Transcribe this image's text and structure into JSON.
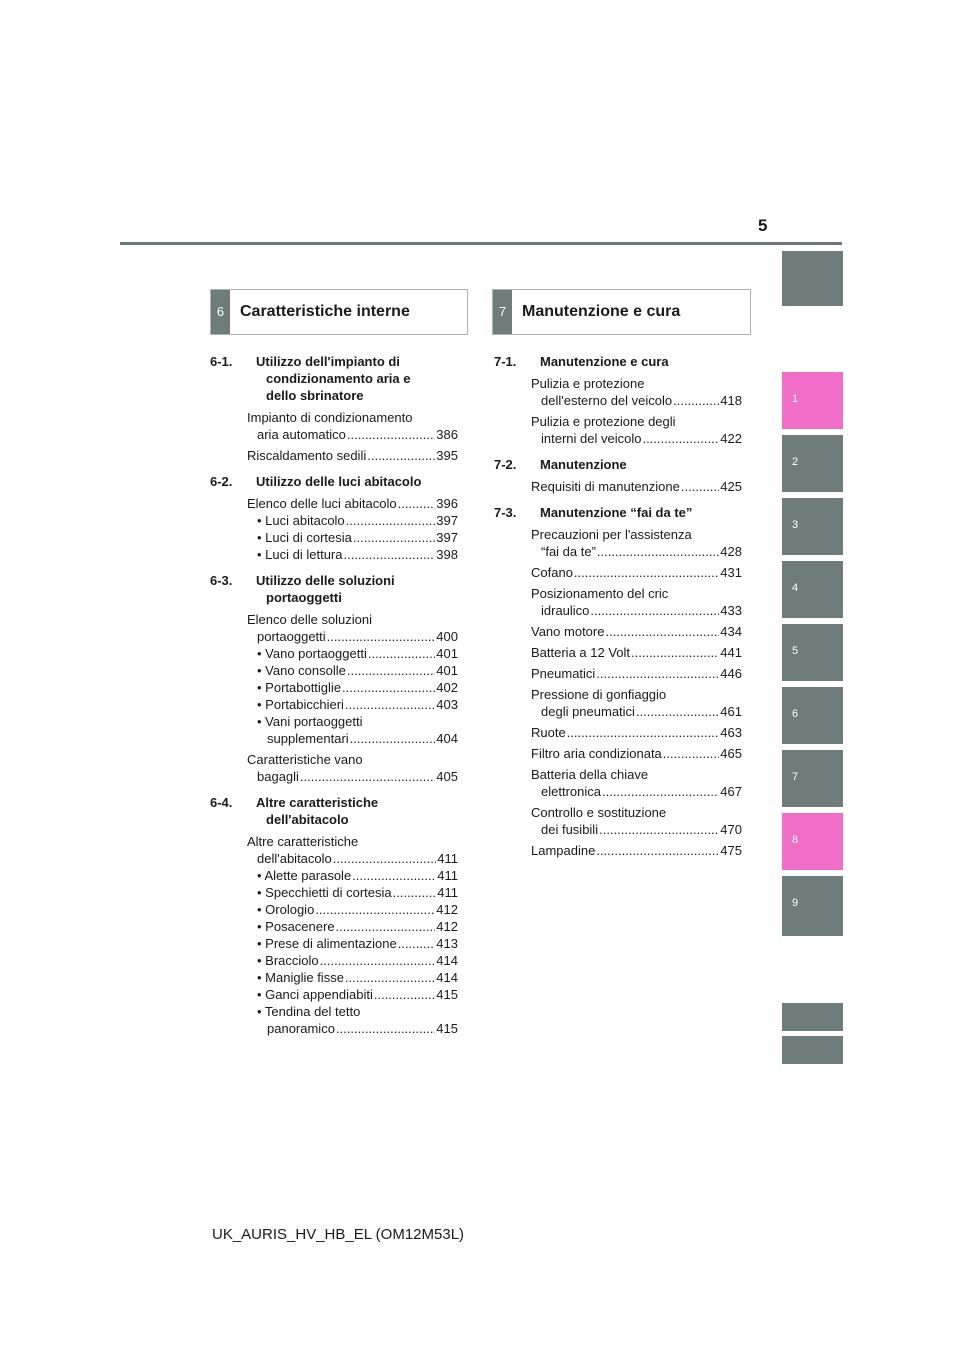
{
  "page_number": "5",
  "side_tabs": [
    {
      "label": ""
    },
    {
      "label": "1"
    },
    {
      "label": "2"
    },
    {
      "label": "3"
    },
    {
      "label": "4"
    },
    {
      "label": "5"
    },
    {
      "label": "6"
    },
    {
      "label": "7"
    },
    {
      "label": "8"
    },
    {
      "label": "9"
    }
  ],
  "colors": {
    "tab_grey": "#6f7c7c",
    "tab_pink": "#f06ec8",
    "rule": "#6b7b7b"
  },
  "left_header": {
    "num": "6",
    "title": "Caratteristiche interne"
  },
  "right_header": {
    "num": "7",
    "title": "Manutenzione e cura"
  },
  "left": {
    "s1": {
      "num": "6-1.",
      "title1": "Utilizzo dell'impianto di",
      "title2": "condizionamento aria e",
      "title3": "dello sbrinatore",
      "e1a": "Impianto di condizionamento",
      "e1b": "aria automatico",
      "e1p": "386",
      "e2": "Riscaldamento sedili",
      "e2p": "395"
    },
    "s2": {
      "num": "6-2.",
      "title1": "Utilizzo delle luci abitacolo",
      "e1": "Elenco delle luci abitacolo",
      "e1p": "396",
      "b1": "• Luci abitacolo",
      "b1p": "397",
      "b2": "• Luci di cortesia",
      "b2p": "397",
      "b3": "• Luci di lettura",
      "b3p": "398"
    },
    "s3": {
      "num": "6-3.",
      "title1": "Utilizzo delle soluzioni",
      "title2": "portaoggetti",
      "e1a": "Elenco delle soluzioni",
      "e1b": "portaoggetti",
      "e1p": "400",
      "b1": "• Vano portaoggetti",
      "b1p": "401",
      "b2": "• Vano consolle",
      "b2p": "401",
      "b3": "• Portabottiglie",
      "b3p": "402",
      "b4": "• Portabicchieri",
      "b4p": "403",
      "b5a": "• Vani portaoggetti",
      "b5b": "supplementari",
      "b5p": "404",
      "e2a": "Caratteristiche vano",
      "e2b": "bagagli",
      "e2p": "405"
    },
    "s4": {
      "num": "6-4.",
      "title1": "Altre caratteristiche",
      "title2": "dell'abitacolo",
      "e1a": "Altre caratteristiche",
      "e1b": "dell'abitacolo",
      "e1p": "411",
      "b1": "• Alette parasole",
      "b1p": "411",
      "b2": "• Specchietti di cortesia",
      "b2p": "411",
      "b3": "• Orologio",
      "b3p": "412",
      "b4": "• Posacenere",
      "b4p": "412",
      "b5": "• Prese di alimentazione",
      "b5p": "413",
      "b6": "• Bracciolo",
      "b6p": "414",
      "b7": "• Maniglie fisse",
      "b7p": "414",
      "b8": "• Ganci appendiabiti",
      "b8p": "415",
      "b9a": "• Tendina del tetto",
      "b9b": "panoramico",
      "b9p": "415"
    }
  },
  "right": {
    "s1": {
      "num": "7-1.",
      "title1": "Manutenzione e cura",
      "e1a": "Pulizia e protezione",
      "e1b": "dell'esterno del veicolo",
      "e1p": "418",
      "e2a": "Pulizia e protezione degli",
      "e2b": "interni del veicolo",
      "e2p": "422"
    },
    "s2": {
      "num": "7-2.",
      "title1": "Manutenzione",
      "e1": "Requisiti di manutenzione",
      "e1p": "425"
    },
    "s3": {
      "num": "7-3.",
      "title1": "Manutenzione “fai da te”",
      "e1a": "Precauzioni per l'assistenza",
      "e1b": "“fai da te”",
      "e1p": "428",
      "e2": "Cofano",
      "e2p": "431",
      "e3a": "Posizionamento del cric",
      "e3b": "idraulico",
      "e3p": "433",
      "e4": "Vano motore",
      "e4p": "434",
      "e5": "Batteria a 12 Volt",
      "e5p": "441",
      "e6": "Pneumatici",
      "e6p": "446",
      "e7a": "Pressione di gonfiaggio",
      "e7b": "degli pneumatici",
      "e7p": "461",
      "e8": "Ruote",
      "e8p": "463",
      "e9": "Filtro aria condizionata",
      "e9p": "465",
      "e10a": "Batteria della chiave",
      "e10b": "elettronica",
      "e10p": "467",
      "e11a": "Controllo e sostituzione",
      "e11b": "dei fusibili",
      "e11p": "470",
      "e12": "Lampadine",
      "e12p": "475"
    }
  },
  "footer": "UK_AURIS_HV_HB_EL (OM12M53L)"
}
